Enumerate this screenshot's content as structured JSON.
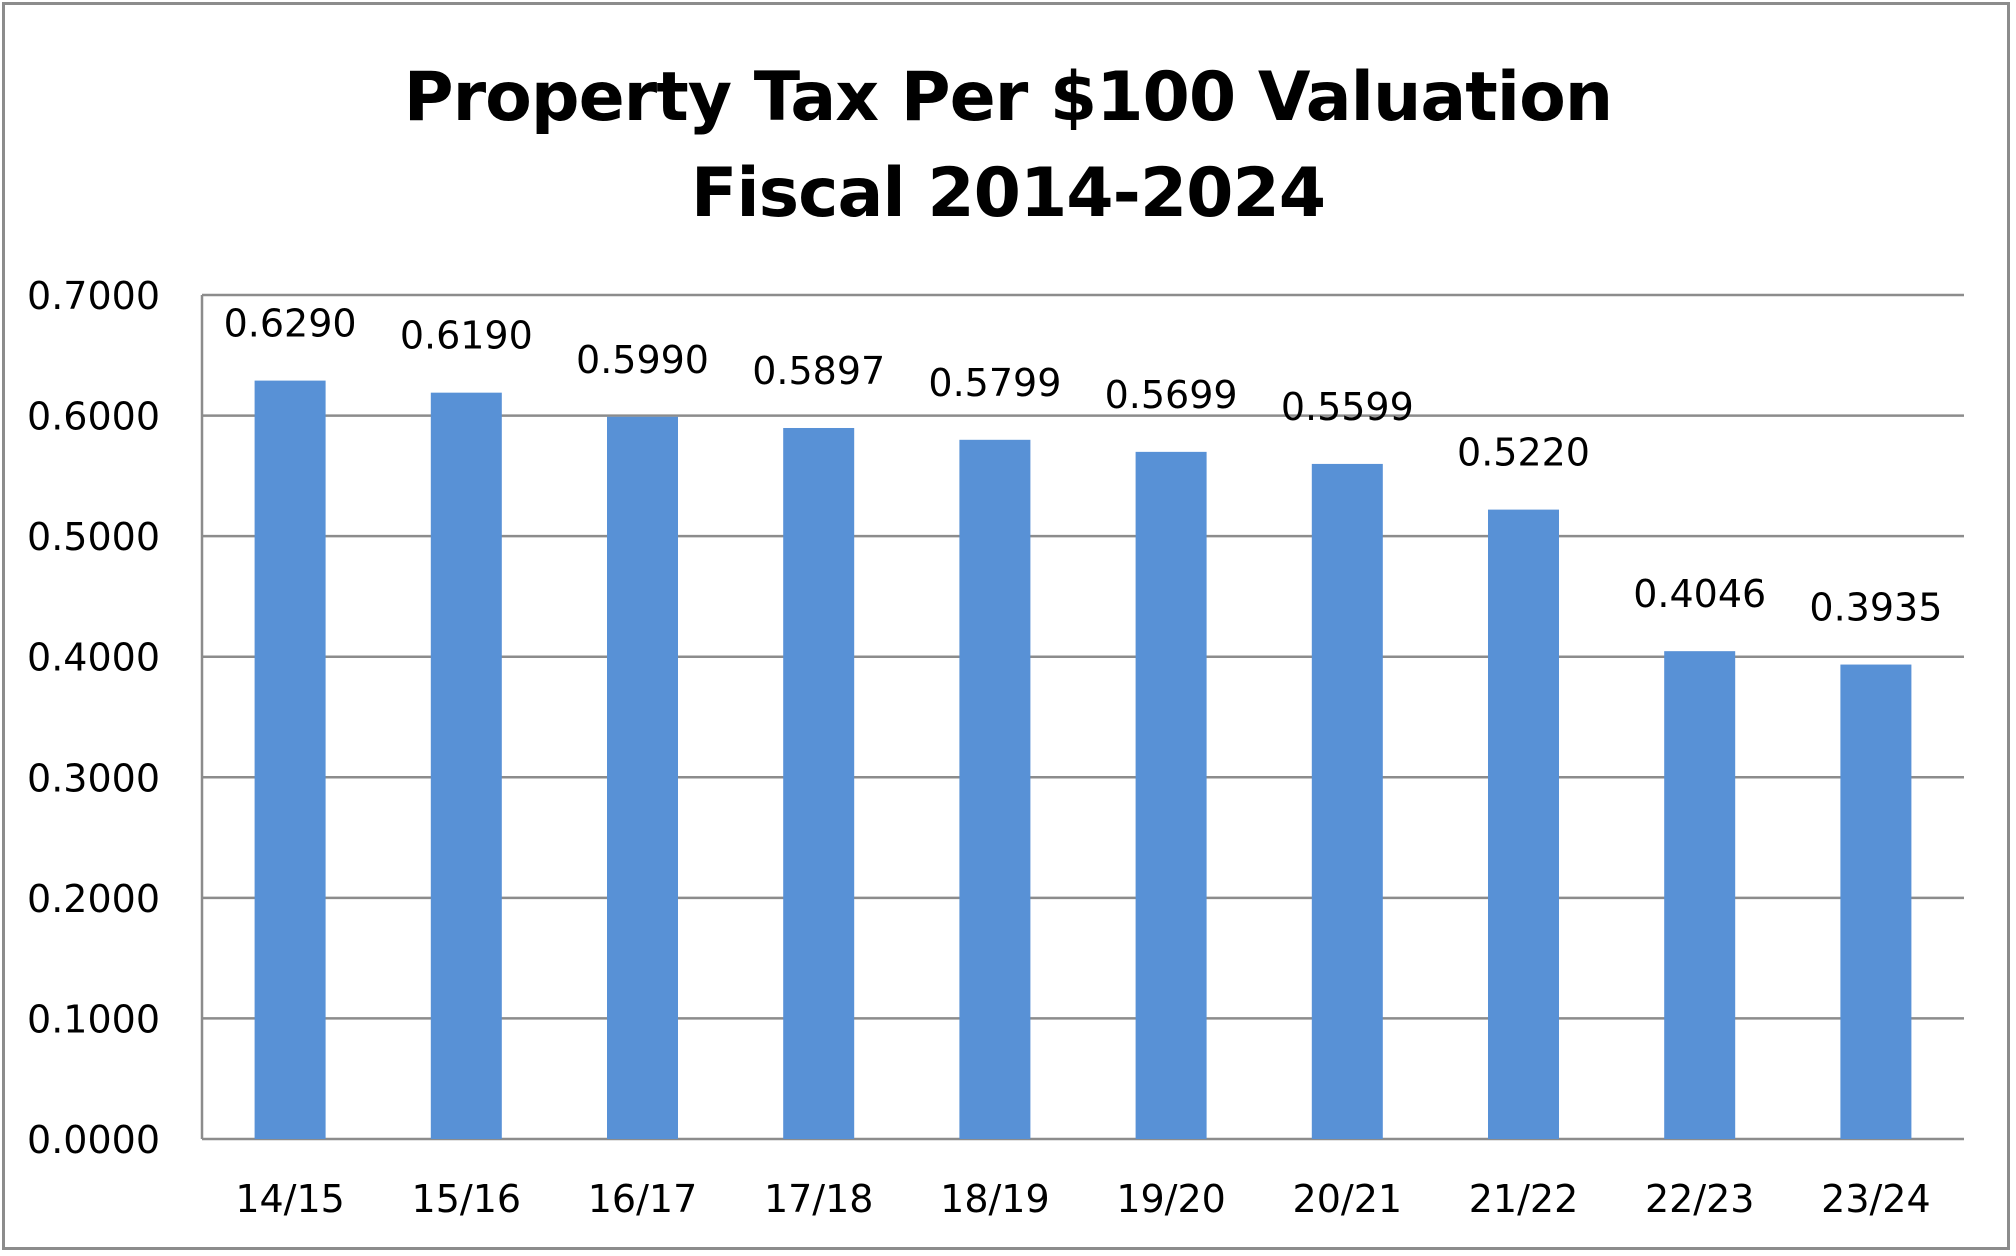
{
  "chart_data": {
    "type": "bar",
    "title_lines": [
      "Property Tax Per $100 Valuation",
      "Fiscal 2014-2024"
    ],
    "categories": [
      "14/15",
      "15/16",
      "16/17",
      "17/18",
      "18/19",
      "19/20",
      "20/21",
      "21/22",
      "22/23",
      "23/24"
    ],
    "values": [
      0.629,
      0.619,
      0.599,
      0.5897,
      0.5799,
      0.5699,
      0.5599,
      0.522,
      0.4046,
      0.3935
    ],
    "data_labels": [
      "0.6290",
      "0.6190",
      "0.5990",
      "0.5897",
      "0.5799",
      "0.5699",
      "0.5599",
      "0.5220",
      "0.4046",
      "0.3935"
    ],
    "y_ticks": [
      "0.0000",
      "0.1000",
      "0.2000",
      "0.3000",
      "0.4000",
      "0.5000",
      "0.6000",
      "0.7000"
    ],
    "ylim": [
      0,
      0.7
    ],
    "grid": true,
    "legend": "none",
    "bar_color": "#5891d6",
    "grid_color": "#8c8c8c"
  }
}
